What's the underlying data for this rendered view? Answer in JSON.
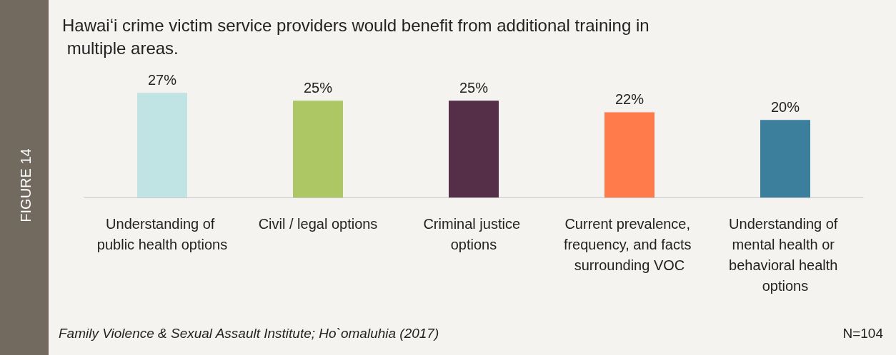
{
  "chart_data": {
    "type": "bar",
    "title": "Hawaiʻi crime victim service providers would benefit from additional training in multiple areas.",
    "categories": [
      "Understanding of public health options",
      "Civil / legal options",
      "Criminal justice options",
      "Current prevalence, frequency, and facts surrounding VOC",
      "Understanding of mental health or behavioral health options"
    ],
    "values": [
      27,
      25,
      25,
      22,
      20
    ],
    "colors": [
      "#c0e3e4",
      "#aec765",
      "#552f47",
      "#ff7b4b",
      "#3b7f9c"
    ],
    "value_labels": [
      "27%",
      "25%",
      "25%",
      "22%",
      "20%"
    ],
    "annotations": [
      "FIGURE 14",
      "Family Violence & Sexual Assault Institute; Ho`omaluhia (2017)",
      "N=104"
    ]
  }
}
